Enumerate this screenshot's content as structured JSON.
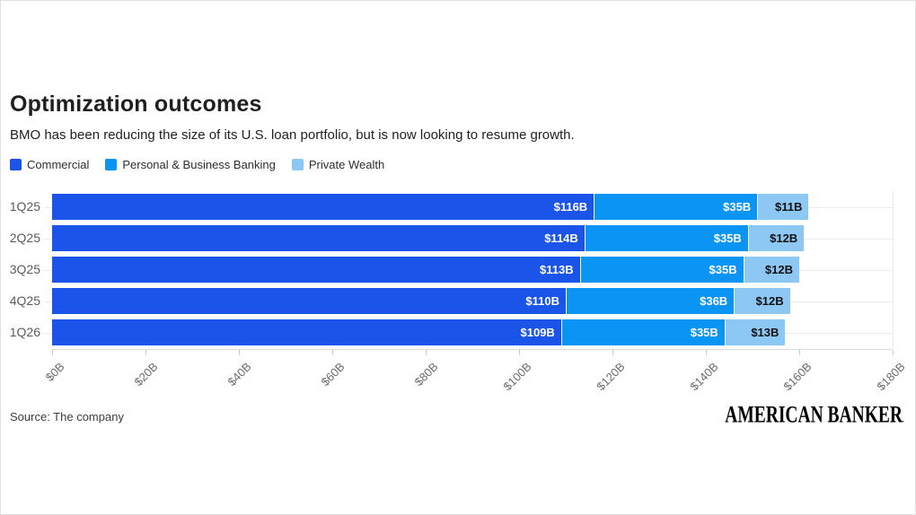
{
  "header": {
    "title": "Optimization outcomes",
    "subtitle": "BMO has been reducing the size of its U.S. loan portfolio, but is now looking to resume growth."
  },
  "legend": [
    {
      "label": "Commercial",
      "color": "#1b54e8"
    },
    {
      "label": "Personal & Business Banking",
      "color": "#0a94f4"
    },
    {
      "label": "Private Wealth",
      "color": "#8dc8f4"
    }
  ],
  "chart_data": {
    "type": "bar",
    "orientation": "horizontal",
    "stacked": true,
    "categories": [
      "1Q25",
      "2Q25",
      "3Q25",
      "4Q25",
      "1Q26"
    ],
    "series": [
      {
        "name": "Commercial",
        "color": "#1b54e8",
        "label_color": "#ffffff",
        "values": [
          116,
          114,
          113,
          110,
          109
        ],
        "labels": [
          "$116B",
          "$114B",
          "$113B",
          "$110B",
          "$109B"
        ]
      },
      {
        "name": "Personal & Business Banking",
        "color": "#0a94f4",
        "label_color": "#ffffff",
        "values": [
          35,
          35,
          35,
          36,
          35
        ],
        "labels": [
          "$35B",
          "$35B",
          "$35B",
          "$36B",
          "$35B"
        ]
      },
      {
        "name": "Private Wealth",
        "color": "#8dc8f4",
        "label_color": "#111111",
        "values": [
          11,
          12,
          12,
          12,
          13
        ],
        "labels": [
          "$11B",
          "$12B",
          "$12B",
          "$12B",
          "$13B"
        ]
      }
    ],
    "x_axis": {
      "tick_labels": [
        "$0B",
        "$20B",
        "$40B",
        "$60B",
        "$80B",
        "$100B",
        "$120B",
        "$140B",
        "$160B",
        "$180B"
      ],
      "tick_values": [
        0,
        20,
        40,
        60,
        80,
        100,
        120,
        140,
        160,
        180
      ],
      "min": 0,
      "max": 180
    },
    "grid": "row-lines",
    "legend_position": "top"
  },
  "footer": {
    "source": "Source: The company",
    "logo": "AMERICAN BANKER",
    "logo_mark": "."
  }
}
